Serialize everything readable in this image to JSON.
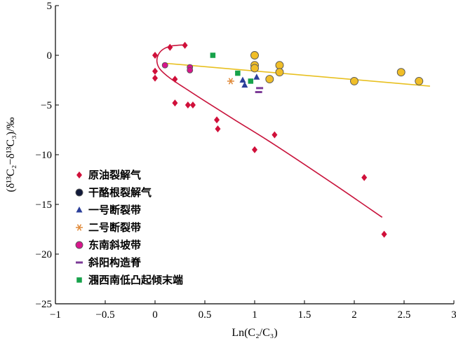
{
  "chart_data": {
    "type": "scatter",
    "xlabel": "Ln(C₂/C₃)",
    "ylabel": "(δ¹³C₂−δ¹³C₃)/‰",
    "xlim": [
      -1,
      3
    ],
    "ylim": [
      -25,
      5
    ],
    "xticks": [
      -1,
      -0.5,
      0,
      0.5,
      1,
      1.5,
      2,
      2.5,
      3
    ],
    "xtick_labels": [
      "−1",
      "−0.5",
      "0",
      "0.5",
      "1",
      "1.5",
      "2",
      "2.5",
      "3"
    ],
    "yticks": [
      5,
      0,
      -5,
      -10,
      -15,
      -20,
      -25
    ],
    "ytick_labels": [
      "5",
      "0",
      "−5",
      "−10",
      "−15",
      "−20",
      "−25"
    ],
    "grid": false,
    "legend_position": "left",
    "series": [
      {
        "name": "原油裂解气",
        "marker": "diamond",
        "color": "#d0103a",
        "points": [
          [
            0.0,
            0.0
          ],
          [
            0.15,
            0.8
          ],
          [
            0.3,
            1.0
          ],
          [
            0.0,
            -1.6
          ],
          [
            0.0,
            -2.3
          ],
          [
            0.2,
            -2.4
          ],
          [
            0.2,
            -4.8
          ],
          [
            0.33,
            -5.0
          ],
          [
            0.38,
            -5.0
          ],
          [
            0.62,
            -6.5
          ],
          [
            0.63,
            -7.4
          ],
          [
            1.0,
            -9.5
          ],
          [
            1.2,
            -8.0
          ],
          [
            2.1,
            -12.3
          ],
          [
            2.3,
            -18.0
          ]
        ]
      },
      {
        "name": "干酪根裂解气",
        "marker": "circle",
        "color": "#f0be28",
        "points": [
          [
            1.0,
            0.0
          ],
          [
            1.0,
            -1.0
          ],
          [
            1.0,
            -1.3
          ],
          [
            1.25,
            -1.0
          ],
          [
            1.25,
            -1.7
          ],
          [
            1.15,
            -2.4
          ],
          [
            2.0,
            -2.6
          ],
          [
            2.47,
            -1.7
          ],
          [
            2.65,
            -2.6
          ]
        ]
      },
      {
        "name": "一号断裂带",
        "marker": "triangle",
        "color": "#2b3f9a",
        "points": [
          [
            0.88,
            -2.5
          ],
          [
            0.9,
            -3.0
          ],
          [
            1.02,
            -2.2
          ]
        ]
      },
      {
        "name": "二号断裂带",
        "marker": "asterisk",
        "color": "#e08a3a",
        "points": [
          [
            0.76,
            -2.6
          ]
        ]
      },
      {
        "name": "东南斜坡带",
        "marker": "circle",
        "color": "#d8168c",
        "points": [
          [
            0.1,
            -1.0
          ],
          [
            0.35,
            -1.2
          ],
          [
            0.35,
            -1.5
          ]
        ]
      },
      {
        "name": "斜阳构造脊",
        "marker": "bar",
        "color": "#7b3a96",
        "points": [
          [
            1.05,
            -3.3
          ],
          [
            1.04,
            -3.7
          ]
        ]
      },
      {
        "name": "涠西南低凸起倾末端",
        "marker": "square",
        "color": "#16a24a",
        "points": [
          [
            0.58,
            0.0
          ],
          [
            0.83,
            -1.8
          ],
          [
            0.96,
            -2.6
          ]
        ]
      }
    ],
    "trend_lines": [
      {
        "type": "curve",
        "color": "#c8143c",
        "points": [
          [
            2.28,
            -16.3
          ],
          [
            1.8,
            -13.0
          ],
          [
            1.2,
            -9.0
          ],
          [
            0.8,
            -6.5
          ],
          [
            0.5,
            -4.6
          ],
          [
            0.3,
            -3.3
          ],
          [
            0.15,
            -2.3
          ],
          [
            0.05,
            -1.4
          ],
          [
            0.02,
            -0.7
          ],
          [
            0.03,
            0.0
          ],
          [
            0.08,
            0.6
          ],
          [
            0.17,
            0.95
          ],
          [
            0.3,
            1.05
          ]
        ]
      },
      {
        "type": "linear",
        "color": "#e8c020",
        "points": [
          [
            0.1,
            -0.8
          ],
          [
            2.76,
            -3.1
          ]
        ]
      }
    ]
  }
}
